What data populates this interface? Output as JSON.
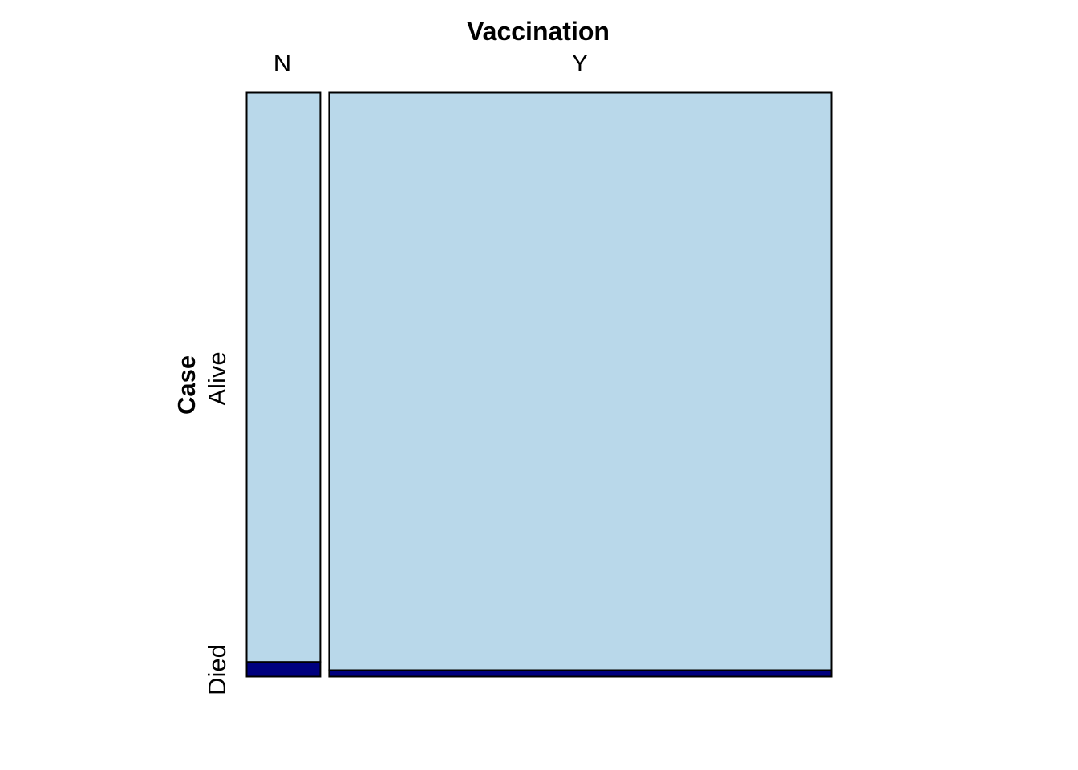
{
  "chart_data": {
    "type": "mosaic",
    "title": "",
    "x_variable": "Vaccination",
    "y_variable": "Case",
    "columns": [
      "N",
      "Y"
    ],
    "rows": [
      "Died",
      "Alive"
    ],
    "column_shares": [
      0.128,
      0.872
    ],
    "died_share_within_column": [
      0.025,
      0.011
    ],
    "colors": {
      "Alive": "#b9d8ea",
      "Died": "#00007f",
      "border": "#000000"
    }
  }
}
